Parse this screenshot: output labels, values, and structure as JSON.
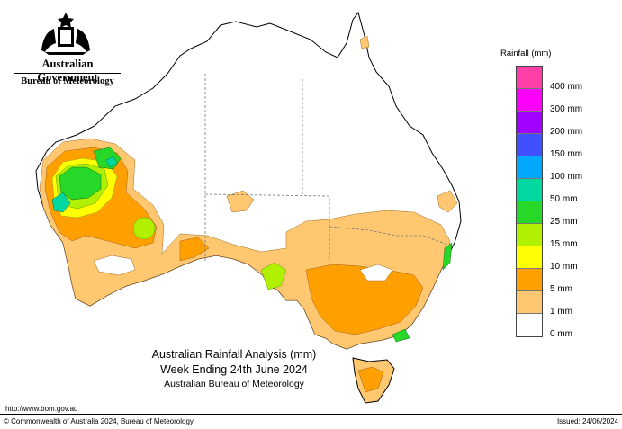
{
  "header": {
    "government": "Australian Government",
    "bureau": "Bureau of Meteorology",
    "crest_icon": "coat-of-arms-icon"
  },
  "map": {
    "title_line1": "Australian Rainfall Analysis (mm)",
    "title_line2": "Week Ending 24th June 2024",
    "title_line3": "Australian Bureau of Meteorology"
  },
  "legend": {
    "title": "Rainfall (mm)",
    "items": [
      {
        "label": "400 mm",
        "color": "#ff3fa8"
      },
      {
        "label": "300 mm",
        "color": "#ff00ff"
      },
      {
        "label": "200 mm",
        "color": "#a000ff"
      },
      {
        "label": "150 mm",
        "color": "#4050ff"
      },
      {
        "label": "100 mm",
        "color": "#00a8ff"
      },
      {
        "label": "50 mm",
        "color": "#00d8a0"
      },
      {
        "label": "25 mm",
        "color": "#28d828"
      },
      {
        "label": "15 mm",
        "color": "#b0f000"
      },
      {
        "label": "10 mm",
        "color": "#ffff00"
      },
      {
        "label": "5 mm",
        "color": "#ffa000"
      },
      {
        "label": "1 mm",
        "color": "#ffc870"
      },
      {
        "label": "0 mm",
        "color": "#ffffff"
      }
    ]
  },
  "footer": {
    "url": "http://www.bom.gov.au",
    "copyright": "© Commonwealth of Australia 2024, Bureau of Meteorology",
    "issued": "Issued: 24/06/2024"
  }
}
